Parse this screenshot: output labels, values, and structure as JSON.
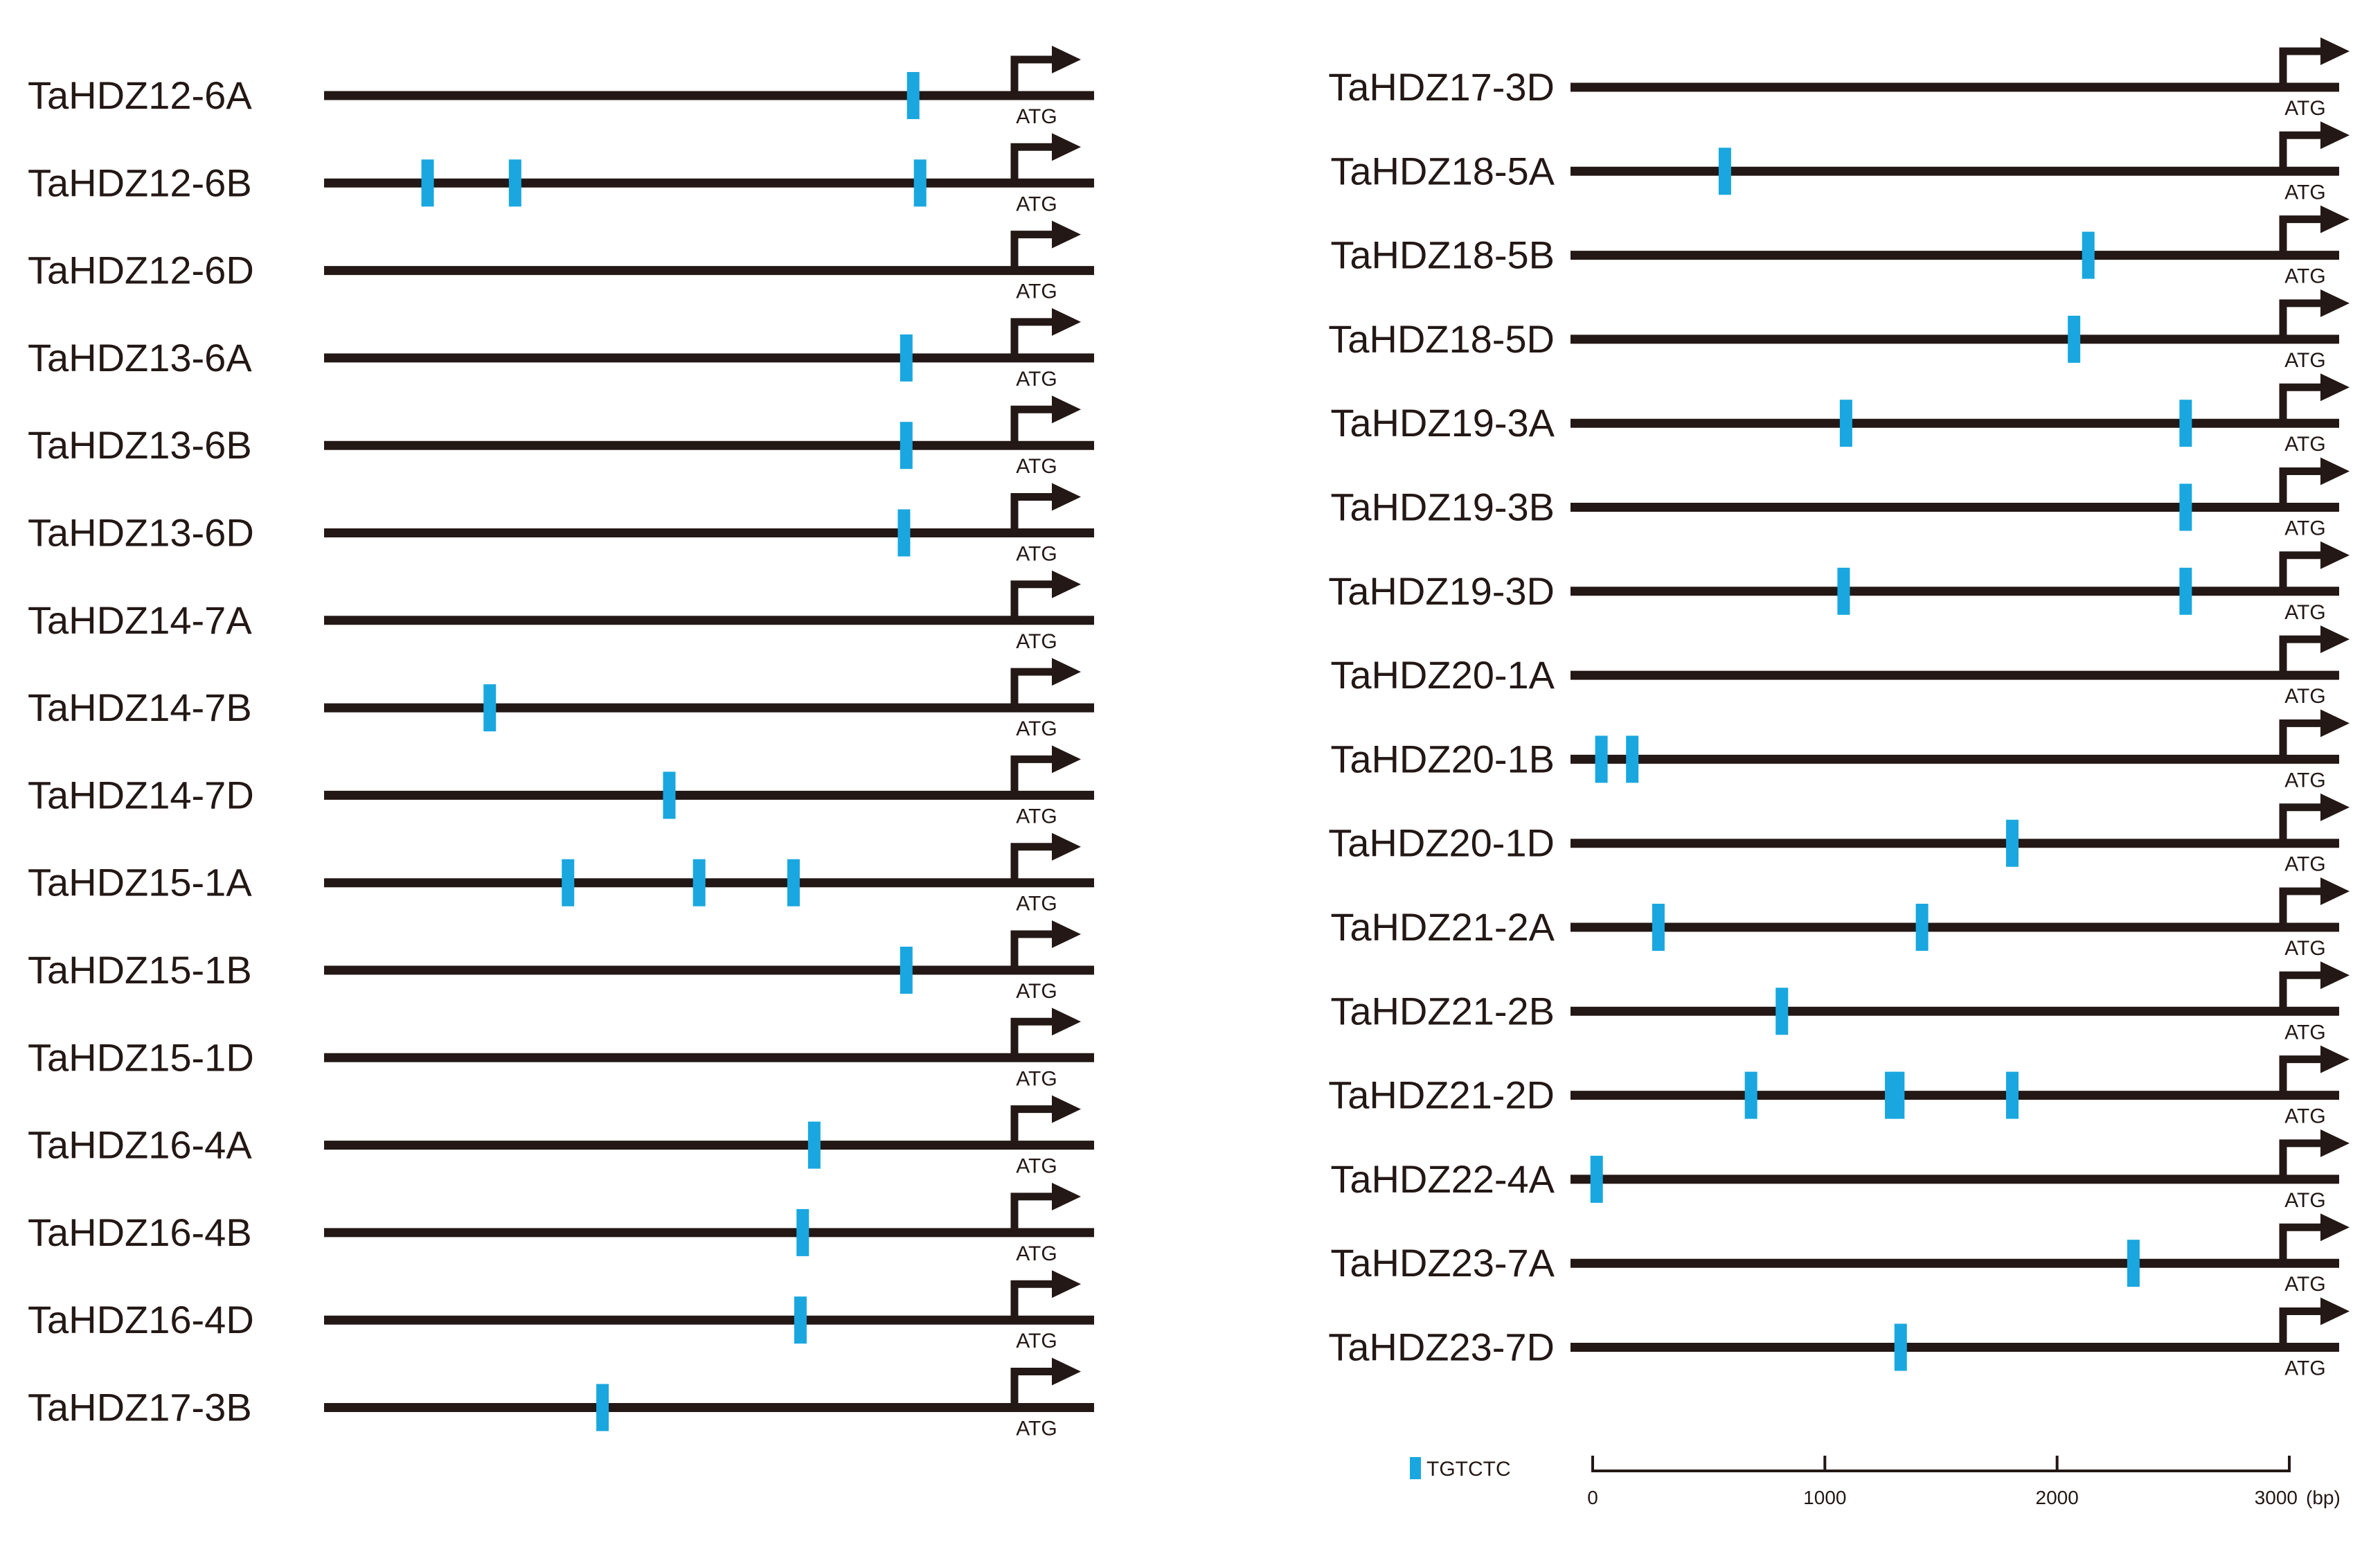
{
  "atg_label": "ATG",
  "colors": {
    "line": "#231815",
    "motif": "#1aa7df"
  },
  "legend": {
    "motif_label": "TGTCTC"
  },
  "scale": {
    "ticks": [
      "0",
      "1000",
      "2000",
      "3000"
    ],
    "unit": "(bp)",
    "range_bp": [
      0,
      3000
    ]
  },
  "panels": [
    {
      "genes": [
        {
          "name": "TaHDZ12-6A",
          "motifs_bp": [
            2560
          ]
        },
        {
          "name": "TaHDZ12-6B",
          "motifs_bp": [
            450,
            830,
            2590
          ]
        },
        {
          "name": "TaHDZ12-6D",
          "motifs_bp": []
        },
        {
          "name": "TaHDZ13-6A",
          "motifs_bp": [
            2530
          ]
        },
        {
          "name": "TaHDZ13-6B",
          "motifs_bp": [
            2530
          ]
        },
        {
          "name": "TaHDZ13-6D",
          "motifs_bp": [
            2520
          ]
        },
        {
          "name": "TaHDZ14-7A",
          "motifs_bp": []
        },
        {
          "name": "TaHDZ14-7B",
          "motifs_bp": [
            720
          ]
        },
        {
          "name": "TaHDZ14-7D",
          "motifs_bp": [
            1500
          ]
        },
        {
          "name": "TaHDZ15-1A",
          "motifs_bp": [
            1060,
            1630,
            2040
          ]
        },
        {
          "name": "TaHDZ15-1B",
          "motifs_bp": [
            2530
          ]
        },
        {
          "name": "TaHDZ15-1D",
          "motifs_bp": []
        },
        {
          "name": "TaHDZ16-4A",
          "motifs_bp": [
            2130
          ]
        },
        {
          "name": "TaHDZ16-4B",
          "motifs_bp": [
            2080
          ]
        },
        {
          "name": "TaHDZ16-4D",
          "motifs_bp": [
            2070
          ]
        },
        {
          "name": "TaHDZ17-3B",
          "motifs_bp": [
            1210
          ]
        }
      ]
    },
    {
      "genes": [
        {
          "name": "TaHDZ17-3D",
          "motifs_bp": []
        },
        {
          "name": "TaHDZ18-5A",
          "motifs_bp": [
            650
          ]
        },
        {
          "name": "TaHDZ18-5B",
          "motifs_bp": [
            2180
          ]
        },
        {
          "name": "TaHDZ18-5D",
          "motifs_bp": [
            2120
          ]
        },
        {
          "name": "TaHDZ19-3A",
          "motifs_bp": [
            1160,
            2590
          ]
        },
        {
          "name": "TaHDZ19-3B",
          "motifs_bp": [
            2590
          ]
        },
        {
          "name": "TaHDZ19-3D",
          "motifs_bp": [
            1150,
            2590
          ]
        },
        {
          "name": "TaHDZ20-1A",
          "motifs_bp": []
        },
        {
          "name": "TaHDZ20-1B",
          "motifs_bp": [
            130,
            260
          ]
        },
        {
          "name": "TaHDZ20-1D",
          "motifs_bp": [
            1860
          ]
        },
        {
          "name": "TaHDZ21-2A",
          "motifs_bp": [
            370,
            1480
          ]
        },
        {
          "name": "TaHDZ21-2B",
          "motifs_bp": [
            890
          ]
        },
        {
          "name": "TaHDZ21-2D",
          "motifs_bp": [
            760,
            1350,
            1380,
            1860
          ]
        },
        {
          "name": "TaHDZ22-4A",
          "motifs_bp": [
            110
          ]
        },
        {
          "name": "TaHDZ23-7A",
          "motifs_bp": [
            2370
          ]
        },
        {
          "name": "TaHDZ23-7D",
          "motifs_bp": [
            1390
          ]
        }
      ]
    }
  ]
}
